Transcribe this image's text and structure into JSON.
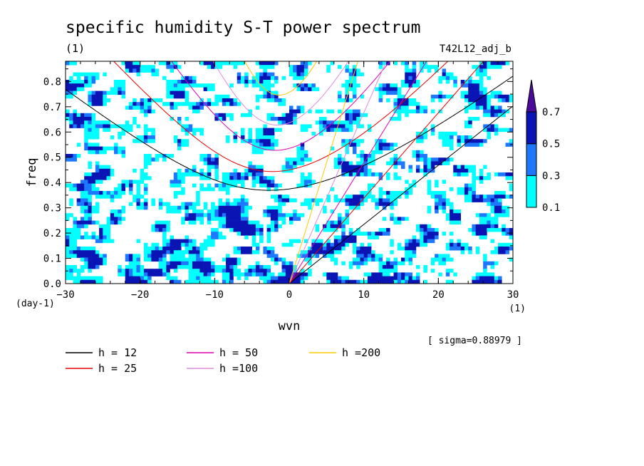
{
  "title": "specific humidity S-T power spectrum",
  "subtitle_unit": "(1)",
  "run_label": "T42L12_adj_b",
  "sigma_label": "[ sigma=0.88979 ]",
  "chart_data": {
    "type": "heatmap",
    "xlabel": "wvn",
    "ylabel": "freq",
    "x_unit": "(1)",
    "y_unit": "(day-1)",
    "xlim": [
      -30,
      30
    ],
    "ylim": [
      0,
      0.88
    ],
    "x_ticks": [
      -30,
      -20,
      -10,
      0,
      10,
      20,
      30
    ],
    "y_ticks": [
      0.0,
      0.1,
      0.2,
      0.3,
      0.4,
      0.5,
      0.6,
      0.7,
      0.8
    ],
    "y_tick_labels": [
      "0.0",
      "0.1",
      "0.2",
      "0.3",
      "0.4",
      "0.5",
      "0.6",
      "0.7",
      "0.8"
    ],
    "colorbar": {
      "levels": [
        0.1,
        0.3,
        0.5,
        0.7
      ],
      "labels": [
        "0.1",
        "0.3",
        "0.5",
        "0.7"
      ],
      "colors": [
        "#00ffff",
        "#1e78ff",
        "#0a14b4",
        "#4b0a9b"
      ]
    },
    "dispersion_curves": [
      {
        "h_label": "h = 12",
        "h": 12,
        "color": "#000000"
      },
      {
        "h_label": "h = 25",
        "h": 25,
        "color": "#e60000"
      },
      {
        "h_label": "h = 50",
        "h": 50,
        "color": "#dc00b4"
      },
      {
        "h_label": "h =100",
        "h": 100,
        "color": "#dc8cdc"
      },
      {
        "h_label": "h =200",
        "h": 200,
        "color": "#ffc800"
      }
    ]
  }
}
